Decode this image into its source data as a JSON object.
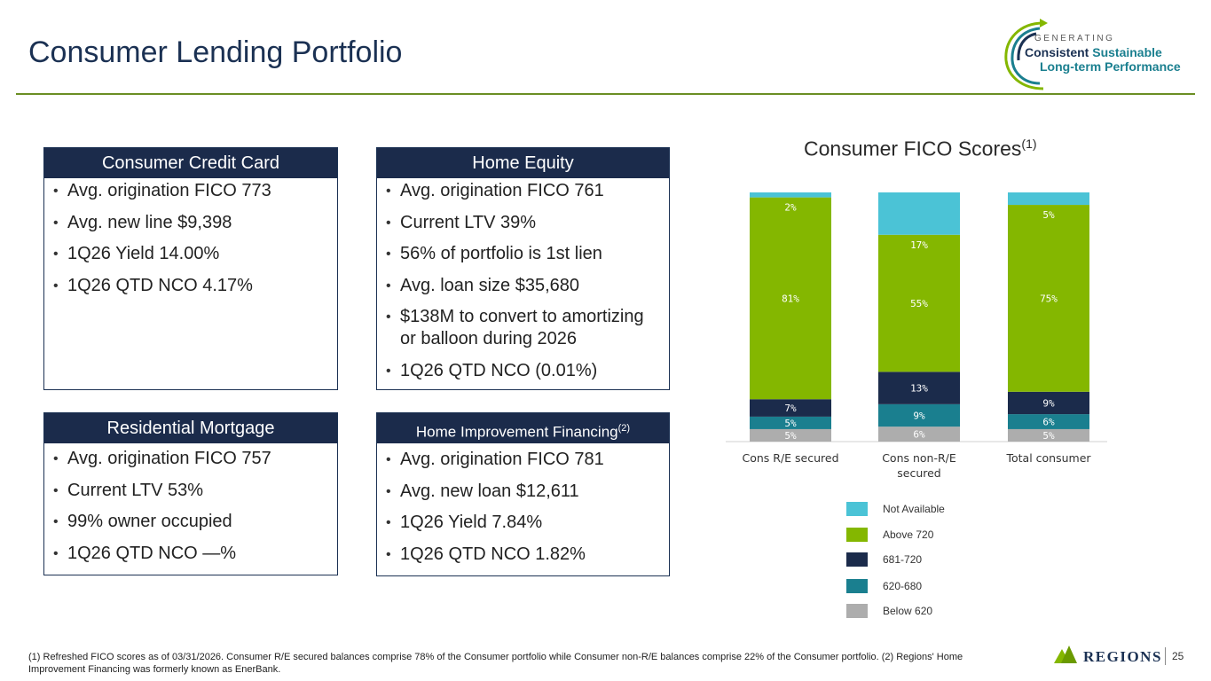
{
  "header": {
    "title": "Consumer Lending Portfolio",
    "logo": {
      "line_generating": "GENERATING",
      "line_consistent": "Consistent",
      "line_sustainable": "Sustainable",
      "line_longterm": "Long-term Performance"
    }
  },
  "cards": {
    "credit_card": {
      "title": "Consumer Credit Card",
      "items": [
        "Avg. origination FICO 773",
        "Avg. new line $9,398",
        "1Q26 Yield 14.00%",
        "1Q26 QTD NCO 4.17%"
      ]
    },
    "home_equity": {
      "title": "Home Equity",
      "items": [
        "Avg. origination FICO 761",
        "Current LTV 39%",
        "56% of portfolio is 1st lien",
        "Avg. loan size $35,680",
        "$138M to convert to amortizing or balloon during 2026",
        "1Q26 QTD NCO (0.01%)"
      ]
    },
    "mortgage": {
      "title": "Residential Mortgage",
      "items": [
        "Avg. origination FICO 757",
        "Current LTV 53%",
        "99% owner occupied",
        "1Q26 QTD NCO —%"
      ]
    },
    "home_improvement": {
      "title": "Home Improvement Financing",
      "title_note": "(2)",
      "items": [
        "Avg. origination FICO 781",
        "Avg. new loan $12,611",
        "1Q26 Yield 7.84%",
        "1Q26 QTD NCO 1.82%"
      ]
    }
  },
  "chart_title": {
    "text": "Consumer FICO Scores",
    "note": "(1)"
  },
  "chart_data": {
    "type": "bar",
    "stacked": true,
    "title": "Consumer FICO Scores(1)",
    "categories": [
      "Cons R/E secured",
      "Cons non-R/E secured",
      "Total consumer"
    ],
    "series": [
      {
        "name": "Below 620",
        "color": "#adadad",
        "values": [
          5,
          6,
          5
        ]
      },
      {
        "name": "620-680",
        "color": "#1a7f8f",
        "values": [
          5,
          9,
          6
        ]
      },
      {
        "name": "681-720",
        "color": "#1b2b4b",
        "values": [
          7,
          13,
          9
        ]
      },
      {
        "name": "Above 720",
        "color": "#84b700",
        "values": [
          81,
          55,
          75
        ]
      },
      {
        "name": "Not Available",
        "color": "#4bc3d6",
        "values": [
          2,
          17,
          5
        ]
      }
    ],
    "ylim": [
      0,
      100
    ],
    "legend_position": "bottom-center"
  },
  "legend": [
    {
      "label": "Not Available",
      "color": "#4bc3d6"
    },
    {
      "label": "Above 720",
      "color": "#84b700"
    },
    {
      "label": "681-720",
      "color": "#1b2b4b"
    },
    {
      "label": "620-680",
      "color": "#1a7f8f"
    },
    {
      "label": "Below 620",
      "color": "#adadad"
    }
  ],
  "footnote": "(1) Refreshed FICO scores as of 03/31/2026. Consumer R/E secured balances comprise 78% of the Consumer portfolio while Consumer non-R/E balances comprise 22% of the Consumer portfolio. (2) Regions' Home Improvement Financing was formerly known as EnerBank.",
  "brand": {
    "name": "REGIONS",
    "page_number": "25"
  }
}
